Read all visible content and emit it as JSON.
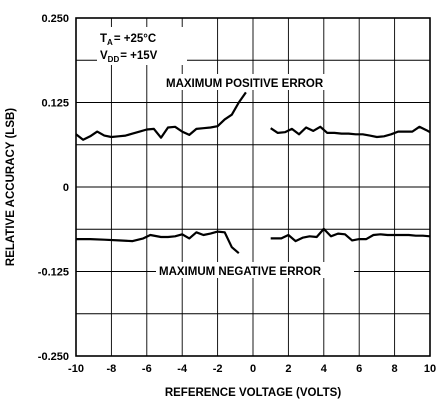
{
  "chart_data": {
    "type": "line",
    "xlabel": "REFERENCE VOLTAGE (VOLTS)",
    "ylabel": "RELATIVE ACCURACY (LSB)",
    "xlim": [
      -10,
      10
    ],
    "ylim": [
      -0.25,
      0.25
    ],
    "x_ticks": [
      -10,
      -8,
      -6,
      -4,
      -2,
      0,
      2,
      4,
      6,
      8,
      10
    ],
    "y_ticks": [
      0.25,
      0.125,
      0,
      -0.125,
      -0.25
    ],
    "y_tick_labels": [
      "0.250",
      "0.125",
      "0",
      "-0.125",
      "-0.250"
    ],
    "x_tick_labels": [
      "-10",
      "-8",
      "-6",
      "-4",
      "-2",
      "0",
      "2",
      "4",
      "6",
      "8",
      "10"
    ],
    "grid": true,
    "conditions": {
      "temp_prefix": "T",
      "temp_sub": "A",
      "temp_value": "= +25°C",
      "vdd_prefix": "V",
      "vdd_sub": "DD",
      "vdd_value": "= +15V"
    },
    "annotations": {
      "positive": "MAXIMUM POSITIVE ERROR",
      "negative": "MAXIMUM NEGATIVE ERROR"
    },
    "series": [
      {
        "key": "positive",
        "segments": [
          {
            "x": [
              -10,
              -9.6,
              -9.2,
              -8.8,
              -8.4,
              -8.0,
              -7.6,
              -7.2,
              -6.8,
              -6.4,
              -6.0,
              -5.6,
              -5.2,
              -4.8,
              -4.4,
              -4.0,
              -3.6,
              -3.2,
              -2.8,
              -2.4,
              -2.0,
              -1.6,
              -1.2,
              -0.8,
              -0.4
            ],
            "y": [
              0.078,
              0.07,
              0.075,
              0.082,
              0.076,
              0.074,
              0.075,
              0.076,
              0.079,
              0.082,
              0.085,
              0.086,
              0.073,
              0.088,
              0.089,
              0.082,
              0.077,
              0.086,
              0.087,
              0.088,
              0.09,
              0.1,
              0.107,
              0.125,
              0.14
            ]
          },
          {
            "x": [
              1.0,
              1.4,
              1.8,
              2.2,
              2.6,
              3.0,
              3.4,
              3.8,
              4.2,
              4.6,
              5.0,
              5.4,
              5.8,
              6.2,
              6.6,
              7.0,
              7.4,
              7.8,
              8.2,
              8.6,
              9.0,
              9.4,
              9.8,
              10.0
            ],
            "y": [
              0.087,
              0.08,
              0.081,
              0.086,
              0.078,
              0.088,
              0.083,
              0.089,
              0.08,
              0.08,
              0.079,
              0.079,
              0.078,
              0.078,
              0.076,
              0.074,
              0.075,
              0.078,
              0.082,
              0.082,
              0.082,
              0.089,
              0.084,
              0.081
            ]
          }
        ]
      },
      {
        "key": "negative",
        "segments": [
          {
            "x": [
              -10,
              -9.2,
              -8.4,
              -7.6,
              -6.8,
              -6.2,
              -5.8,
              -5.2,
              -4.8,
              -4.4,
              -4.0,
              -3.6,
              -3.2,
              -2.8,
              -2.4,
              -2.0,
              -1.6,
              -1.2,
              -0.8
            ],
            "y": [
              -0.077,
              -0.077,
              -0.078,
              -0.079,
              -0.08,
              -0.076,
              -0.071,
              -0.074,
              -0.074,
              -0.073,
              -0.07,
              -0.076,
              -0.067,
              -0.071,
              -0.069,
              -0.066,
              -0.067,
              -0.089,
              -0.098
            ]
          },
          {
            "x": [
              1.0,
              1.6,
              2.0,
              2.4,
              2.8,
              3.2,
              3.6,
              4.0,
              4.4,
              4.8,
              5.2,
              5.6,
              6.0,
              6.4,
              6.8,
              7.2,
              7.6,
              8.0,
              8.4,
              8.8,
              9.2,
              9.6,
              10.0
            ],
            "y": [
              -0.076,
              -0.076,
              -0.071,
              -0.08,
              -0.075,
              -0.073,
              -0.074,
              -0.062,
              -0.073,
              -0.069,
              -0.07,
              -0.079,
              -0.077,
              -0.077,
              -0.071,
              -0.07,
              -0.071,
              -0.071,
              -0.071,
              -0.071,
              -0.072,
              -0.072,
              -0.073
            ]
          }
        ]
      }
    ]
  }
}
